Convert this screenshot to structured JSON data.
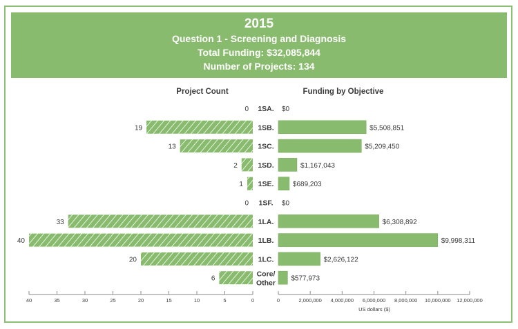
{
  "header": {
    "year": "2015",
    "question": "Question 1 - Screening and Diagnosis",
    "total_funding": "Total Funding: $32,085,844",
    "num_projects": "Number of Projects: 134"
  },
  "colors": {
    "bar": "#88bb6d",
    "border": "#8cc075",
    "axis": "#8a8a8a"
  },
  "chart_data": [
    {
      "type": "bar",
      "orientation": "horizontal",
      "title": "Project Count",
      "direction": "right-to-left",
      "categories": [
        "1SA.",
        "1SB.",
        "1SC.",
        "1SD.",
        "1SE.",
        "1SF.",
        "1LA.",
        "1LB.",
        "1LC.",
        "Core/ Other"
      ],
      "values": [
        0,
        19,
        13,
        2,
        1,
        0,
        33,
        40,
        20,
        6
      ],
      "data_labels": [
        "0",
        "19",
        "13",
        "2",
        "1",
        "0",
        "33",
        "40",
        "20",
        "6"
      ],
      "pattern": "hatched",
      "xlim": [
        0,
        40
      ],
      "ticks": [
        40,
        35,
        30,
        25,
        20,
        15,
        10,
        5,
        0
      ],
      "tick_labels": [
        "40",
        "35",
        "30",
        "25",
        "20",
        "15",
        "10",
        "5",
        "0"
      ],
      "xlabel": ""
    },
    {
      "type": "bar",
      "orientation": "horizontal",
      "title": "Funding by Objective",
      "direction": "left-to-right",
      "categories": [
        "1SA.",
        "1SB.",
        "1SC.",
        "1SD.",
        "1SE.",
        "1SF.",
        "1LA.",
        "1LB.",
        "1LC.",
        "Core/ Other"
      ],
      "values": [
        0,
        5508851,
        5209450,
        1167043,
        689203,
        0,
        6308892,
        9998311,
        2626122,
        577973
      ],
      "data_labels": [
        "$0",
        "$5,508,851",
        "$5,209,450",
        "$1,167,043",
        "$689,203",
        "$0",
        "$6,308,892",
        "$9,998,311",
        "$2,626,122",
        "$577,973"
      ],
      "pattern": "solid",
      "xlim": [
        0,
        12000000
      ],
      "ticks": [
        0,
        2000000,
        4000000,
        6000000,
        8000000,
        10000000,
        12000000
      ],
      "tick_labels": [
        "0",
        "2,000,000",
        "4,000,000",
        "6,000,000",
        "8,000,000",
        "10,000,000",
        "12,000,000"
      ],
      "xlabel": "US dollars ($)"
    }
  ]
}
